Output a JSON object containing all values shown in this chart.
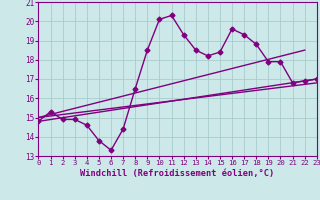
{
  "xlabel": "Windchill (Refroidissement éolien,°C)",
  "x_data": [
    0,
    1,
    2,
    3,
    4,
    5,
    6,
    7,
    8,
    9,
    10,
    11,
    12,
    13,
    14,
    15,
    16,
    17,
    18,
    19,
    20,
    21,
    22,
    23
  ],
  "y_main": [
    14.8,
    15.3,
    14.9,
    14.9,
    14.6,
    13.8,
    13.3,
    14.4,
    16.5,
    18.5,
    20.1,
    20.3,
    19.3,
    18.5,
    18.2,
    18.4,
    19.6,
    19.3,
    18.8,
    17.9,
    17.9,
    16.8,
    16.9,
    17.0
  ],
  "ylim": [
    13,
    21
  ],
  "xlim": [
    0,
    23
  ],
  "yticks": [
    13,
    14,
    15,
    16,
    17,
    18,
    19,
    20,
    21
  ],
  "xticks": [
    0,
    1,
    2,
    3,
    4,
    5,
    6,
    7,
    8,
    9,
    10,
    11,
    12,
    13,
    14,
    15,
    16,
    17,
    18,
    19,
    20,
    21,
    22,
    23
  ],
  "trend1_x": [
    0,
    23
  ],
  "trend1_y": [
    14.8,
    17.0
  ],
  "trend2_x": [
    0,
    22
  ],
  "trend2_y": [
    15.0,
    18.5
  ],
  "trend3_x": [
    0,
    23
  ],
  "trend3_y": [
    15.0,
    16.8
  ],
  "line_color": "#800080",
  "bg_color": "#cce8e8",
  "grid_color": "#aacccc",
  "line_width": 1.0,
  "marker": "D",
  "marker_size": 2.5
}
